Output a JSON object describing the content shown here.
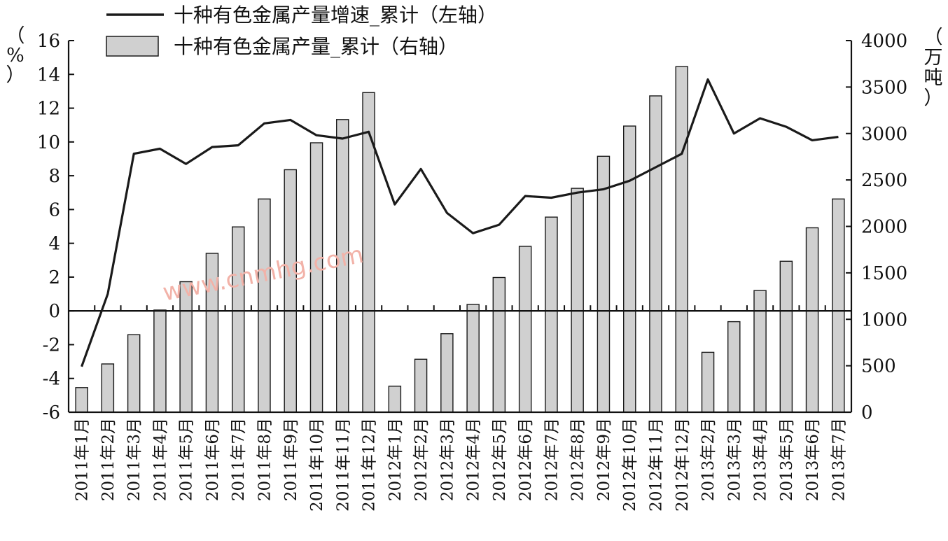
{
  "chart_data": {
    "type": "bar+line",
    "categories": [
      "2011年1月",
      "2011年2月",
      "2011年3月",
      "2011年4月",
      "2011年5月",
      "2011年6月",
      "2011年7月",
      "2011年8月",
      "2011年9月",
      "2011年10月",
      "2011年11月",
      "2011年12月",
      "2012年1月",
      "2012年2月",
      "2012年3月",
      "2012年4月",
      "2012年5月",
      "2012年6月",
      "2012年7月",
      "2012年8月",
      "2012年9月",
      "2012年10月",
      "2012年11月",
      "2012年12月",
      "2013年2月",
      "2013年3月",
      "2013年4月",
      "2013年5月",
      "2013年6月",
      "2013年7月"
    ],
    "series": [
      {
        "name": "十种有色金属产量增速_累计（左轴）",
        "type": "line",
        "axis": "left",
        "color": "#1a1a1a",
        "values": [
          -3.3,
          1.0,
          9.3,
          9.6,
          8.7,
          9.7,
          9.8,
          11.1,
          11.3,
          10.4,
          10.2,
          10.6,
          6.3,
          8.4,
          5.8,
          4.6,
          5.1,
          6.8,
          6.7,
          7.0,
          7.2,
          7.7,
          8.5,
          9.3,
          13.7,
          10.5,
          11.4,
          10.9,
          10.1,
          10.3
        ]
      },
      {
        "name": "十种有色金属产量_累计（右轴）",
        "type": "bar",
        "axis": "right",
        "color": "#d0d0d0",
        "values": [
          265,
          520,
          835,
          1100,
          1405,
          1710,
          1995,
          2295,
          2610,
          2900,
          3150,
          3440,
          280,
          570,
          845,
          1160,
          1450,
          1785,
          2100,
          2410,
          2755,
          3080,
          3405,
          3720,
          645,
          975,
          1310,
          1625,
          1985,
          2295
        ]
      }
    ],
    "left_axis": {
      "ylim": [
        -6,
        16
      ],
      "ticks": [
        -6,
        -4,
        -2,
        0,
        2,
        4,
        6,
        8,
        10,
        12,
        14,
        16
      ],
      "tick_labels": [
        "-6",
        "-4",
        "-2",
        "0",
        "2",
        "4",
        "6",
        "8",
        "10",
        "12",
        "14",
        "16"
      ],
      "unit": "（%）"
    },
    "right_axis": {
      "ylim": [
        0,
        4000
      ],
      "ticks": [
        0,
        500,
        1000,
        1500,
        2000,
        2500,
        3000,
        3500,
        4000
      ],
      "tick_labels": [
        "0",
        "500",
        "1000",
        "1500",
        "2000",
        "2500",
        "3000",
        "3500",
        "4000"
      ],
      "unit": "（万吨）"
    },
    "legend_position": "top-left",
    "grid": false,
    "watermark": "www.cnmhg.com"
  }
}
